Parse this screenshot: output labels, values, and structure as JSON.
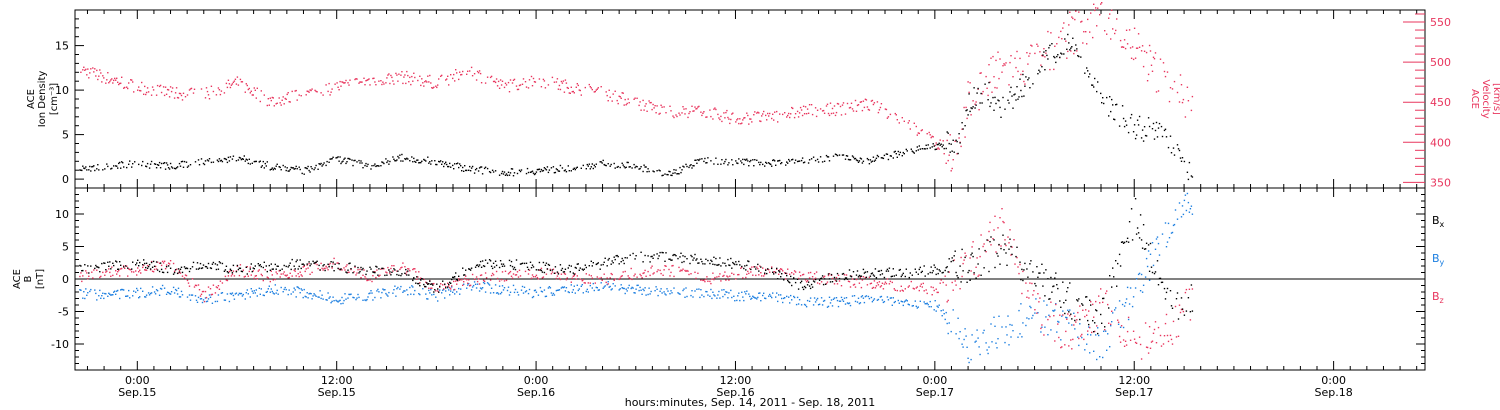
{
  "colors": {
    "black": "#000000",
    "red": "#e8365e",
    "blue": "#1d7fe0"
  },
  "chart_data": [
    {
      "type": "scatter",
      "title": "",
      "ylabel_left": [
        "ACE",
        "Ion Density",
        "[cm⁻³]"
      ],
      "ylabel_right": [
        "ACE",
        "Velocity",
        "[km/s]"
      ],
      "ylim_left": [
        -1,
        19
      ],
      "ylim_right": [
        343,
        565
      ],
      "yticks_left": [
        0,
        5,
        10,
        15
      ],
      "yticks_right": [
        350,
        400,
        450,
        500,
        550
      ],
      "series": [
        {
          "color": "red",
          "axis": "right",
          "x": [
            -3.5,
            -2,
            0,
            2,
            4,
            6,
            8,
            10,
            12,
            14,
            16,
            18,
            20,
            22,
            24,
            26,
            28,
            30,
            32,
            34,
            36,
            38,
            40,
            42,
            44,
            46,
            48,
            49.5,
            50,
            51,
            52,
            54,
            56,
            58,
            60,
            62,
            63.5
          ],
          "y": [
            492,
            482,
            470,
            462,
            460,
            475,
            452,
            460,
            470,
            478,
            482,
            475,
            490,
            470,
            478,
            470,
            462,
            450,
            438,
            440,
            430,
            432,
            440,
            442,
            448,
            430,
            400,
            388,
            455,
            475,
            490,
            500,
            535,
            555,
            520,
            470,
            450
          ]
        },
        {
          "color": "black",
          "axis": "left",
          "x": [
            -3.5,
            -2,
            0,
            2,
            4,
            6,
            8,
            10,
            12,
            14,
            16,
            18,
            20,
            22,
            24,
            26,
            28,
            30,
            32,
            34,
            36,
            38,
            40,
            42,
            44,
            46,
            48,
            49.5,
            50,
            51,
            52,
            54,
            56,
            58,
            60,
            62,
            63.5
          ],
          "y": [
            1.2,
            1.5,
            1.8,
            1.5,
            2.0,
            2.5,
            1.5,
            1.0,
            2.3,
            1.6,
            2.5,
            2.0,
            1.2,
            0.8,
            1.0,
            1.3,
            1.8,
            1.5,
            0.6,
            2.2,
            2.0,
            1.9,
            2.2,
            2.5,
            2.2,
            3.0,
            3.8,
            4.2,
            8.5,
            10,
            8,
            12,
            16,
            9,
            6,
            5,
            0.6
          ]
        }
      ]
    },
    {
      "type": "scatter",
      "title": "",
      "ylabel_left": [
        "ACE",
        "B",
        "[nT]"
      ],
      "ylim": [
        -14,
        14
      ],
      "yticks": [
        -10,
        -5,
        0,
        5,
        10
      ],
      "legend": [
        "B",
        "B",
        "B"
      ],
      "legend_subscripts": [
        "x",
        "y",
        "z"
      ],
      "legend_placement": "right",
      "series": [
        {
          "color": "black",
          "x": [
            -3.5,
            -2,
            0,
            2,
            4,
            6,
            8,
            10,
            12,
            14,
            16,
            18,
            20,
            22,
            24,
            26,
            28,
            30,
            32,
            34,
            36,
            38,
            40,
            42,
            44,
            46,
            48,
            50,
            52,
            54,
            56,
            58,
            60,
            62,
            63.5
          ],
          "y": [
            1.5,
            2.0,
            2.5,
            1.5,
            2.5,
            1.5,
            2.0,
            2.5,
            2.0,
            1.5,
            1.0,
            -1.5,
            2.0,
            2.5,
            2.0,
            1.5,
            2.5,
            3.5,
            3.5,
            3.0,
            2.5,
            1.5,
            -1.0,
            0.5,
            1.0,
            1.0,
            1.5,
            2.0,
            5.0,
            0.5,
            -3,
            -6,
            10,
            -4,
            -3
          ]
        },
        {
          "color": "blue",
          "x": [
            -3.5,
            -2,
            0,
            2,
            4,
            6,
            8,
            10,
            12,
            14,
            16,
            18,
            20,
            22,
            24,
            26,
            28,
            30,
            32,
            34,
            36,
            38,
            40,
            42,
            44,
            46,
            48,
            50,
            52,
            54,
            56,
            58,
            60,
            62,
            63.5
          ],
          "y": [
            -2.0,
            -2.5,
            -2.0,
            -1.5,
            -3.0,
            -2.5,
            -1.5,
            -2.0,
            -3.0,
            -2.5,
            -1.5,
            -2.5,
            -1.0,
            -1.5,
            -2.0,
            -1.5,
            -1.0,
            -1.5,
            -2.0,
            -2.0,
            -2.5,
            -2.5,
            -3.5,
            -3.5,
            -3.0,
            -3.5,
            -4.0,
            -10,
            -8,
            -5,
            -7,
            -10,
            -2,
            8,
            13
          ]
        },
        {
          "color": "red",
          "x": [
            -3.5,
            -2,
            0,
            2,
            4,
            6,
            8,
            10,
            12,
            14,
            16,
            18,
            20,
            22,
            24,
            26,
            28,
            30,
            32,
            34,
            36,
            38,
            40,
            42,
            44,
            46,
            48,
            50,
            52,
            54,
            56,
            58,
            60,
            62,
            63.5
          ],
          "y": [
            0.5,
            1.0,
            1.5,
            2.5,
            -2.5,
            1.5,
            0.5,
            1.5,
            2.5,
            0.5,
            2.0,
            -1.5,
            0,
            0.5,
            1.0,
            0.5,
            0,
            1.0,
            1.5,
            0,
            1.0,
            1.5,
            0.5,
            0,
            -0.5,
            -1.0,
            -1.5,
            2,
            8,
            -5,
            -8,
            -4,
            -10,
            -8,
            -3
          ]
        }
      ]
    }
  ],
  "x_axis": {
    "xlim": [
      -3.75,
      77.5
    ],
    "major_ticks": [
      0,
      12,
      24,
      36,
      48,
      60,
      72
    ],
    "tick_labels_time": [
      "0:00",
      "12:00",
      "0:00",
      "12:00",
      "0:00",
      "12:00",
      "0:00"
    ],
    "tick_labels_date": [
      "Sep.15",
      "Sep.15",
      "Sep.16",
      "Sep.16",
      "Sep.17",
      "Sep.17",
      "Sep.18"
    ],
    "xlabel": "hours:minutes, Sep. 14, 2011 - Sep. 18, 2011"
  }
}
